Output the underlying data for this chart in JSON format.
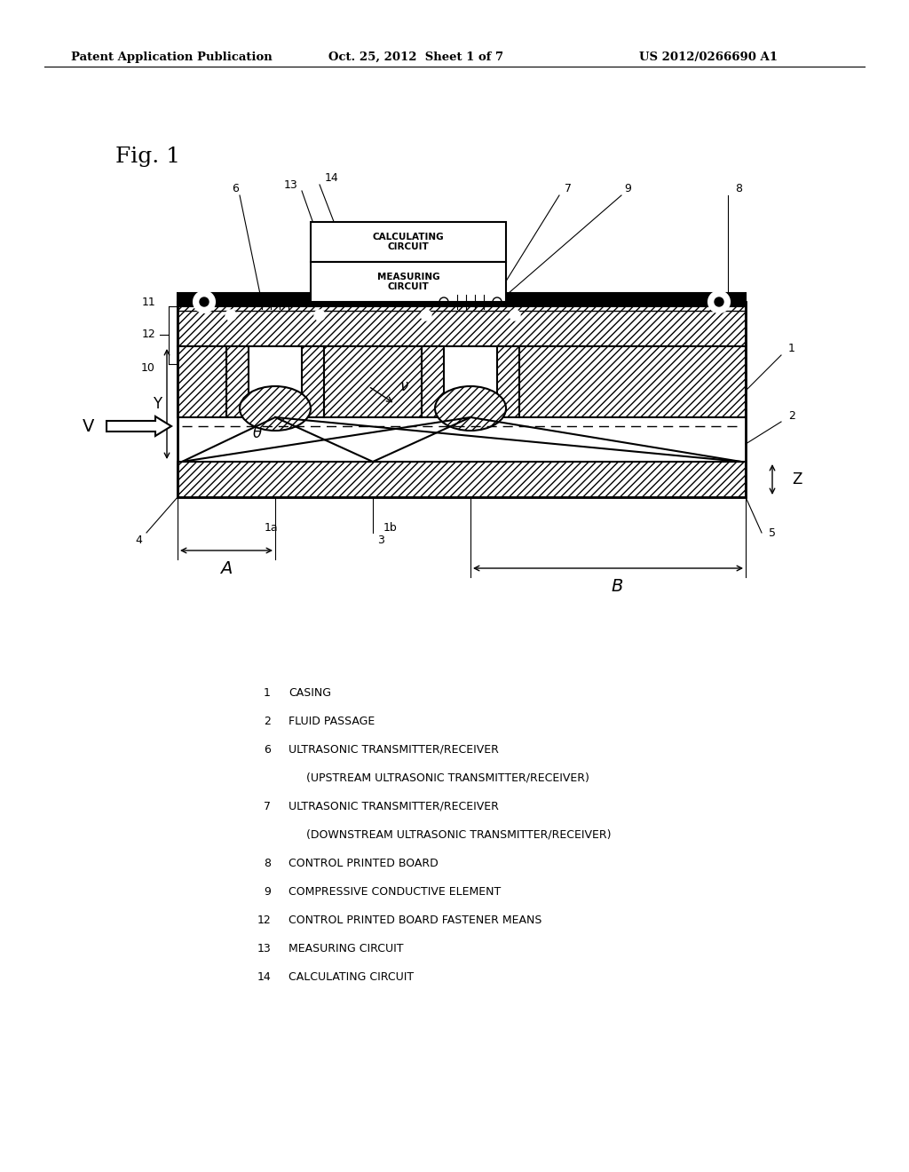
{
  "bg_color": "#ffffff",
  "title_header": "Patent Application Publication",
  "date_header": "Oct. 25, 2012  Sheet 1 of 7",
  "patent_header": "US 2012/0266690 A1",
  "fig_label": "Fig. 1"
}
